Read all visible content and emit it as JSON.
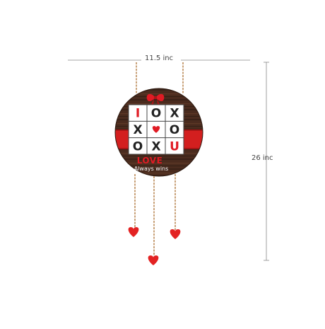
{
  "dimensions": {
    "width_label": "11.5 inc",
    "height_label": "26 inc"
  },
  "board": {
    "grid": [
      [
        "I",
        "O",
        "X"
      ],
      [
        "X",
        "heart",
        "O"
      ],
      [
        "O",
        "X",
        "U"
      ]
    ],
    "title": "LOVE",
    "tagline": "Always wins"
  },
  "colors": {
    "wood_dark": "#3a2218",
    "wood_mid": "#5a3524",
    "band_red": "#d31f1f",
    "accent_red": "#e01b24",
    "letter_dark": "#222222",
    "rope": "#c9a27a",
    "heart_red": "#e32222",
    "line_gray": "#888888"
  },
  "icons": [
    "bow-icon",
    "heart-icon"
  ]
}
